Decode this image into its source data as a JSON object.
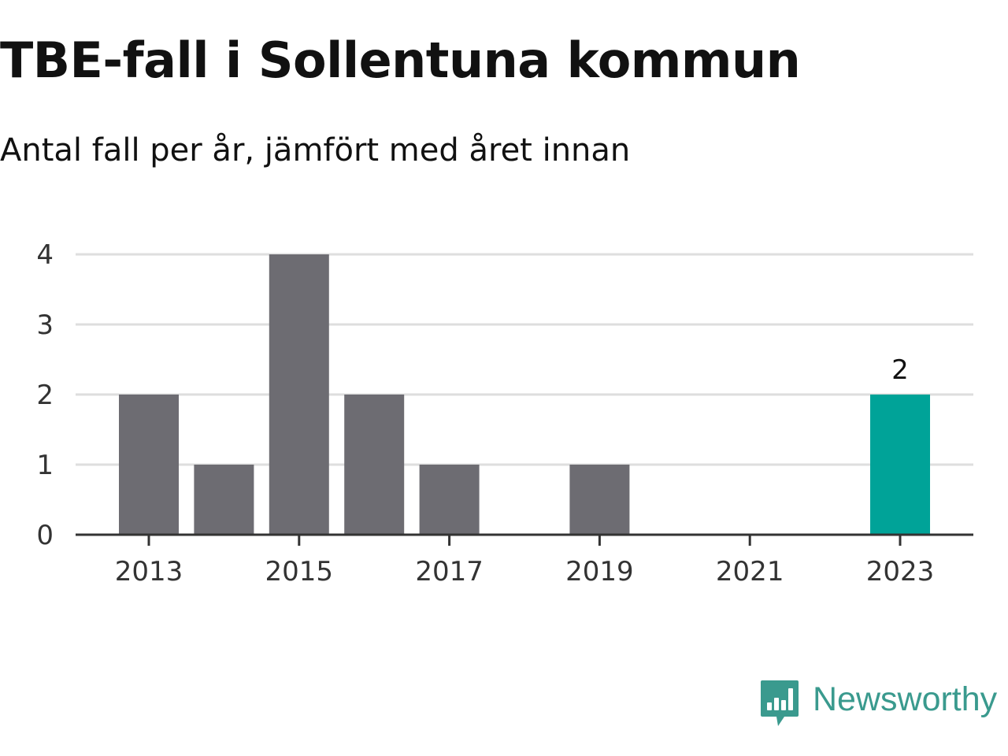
{
  "header": {
    "title": "TBE-fall i Sollentuna kommun",
    "subtitle": "Antal fall per år, jämfört med året innan"
  },
  "brand": {
    "name": "Newsworthy",
    "icon": "newsworthy-logo-icon",
    "color": "#3a9a8e"
  },
  "colors": {
    "bar": "#6d6c72",
    "highlight": "#00a398",
    "grid": "#dedede",
    "axis": "#333333",
    "text": "#333333"
  },
  "chart_data": {
    "type": "bar",
    "title": "TBE-fall i Sollentuna kommun",
    "subtitle": "Antal fall per år, jämfört med året innan",
    "categories": [
      "2013",
      "2014",
      "2015",
      "2016",
      "2017",
      "2018",
      "2019",
      "2020",
      "2021",
      "2022",
      "2023"
    ],
    "values": [
      2,
      1,
      4,
      2,
      1,
      0,
      1,
      0,
      0,
      0,
      2
    ],
    "xticks": [
      "2013",
      "2015",
      "2017",
      "2019",
      "2021",
      "2023"
    ],
    "yticks": [
      0,
      1,
      2,
      3,
      4
    ],
    "ylim": [
      0,
      4
    ],
    "xlabel": "",
    "ylabel": "",
    "grid": true,
    "highlight_category": "2023",
    "data_labels": [
      {
        "category": "2023",
        "text": "2"
      }
    ]
  }
}
